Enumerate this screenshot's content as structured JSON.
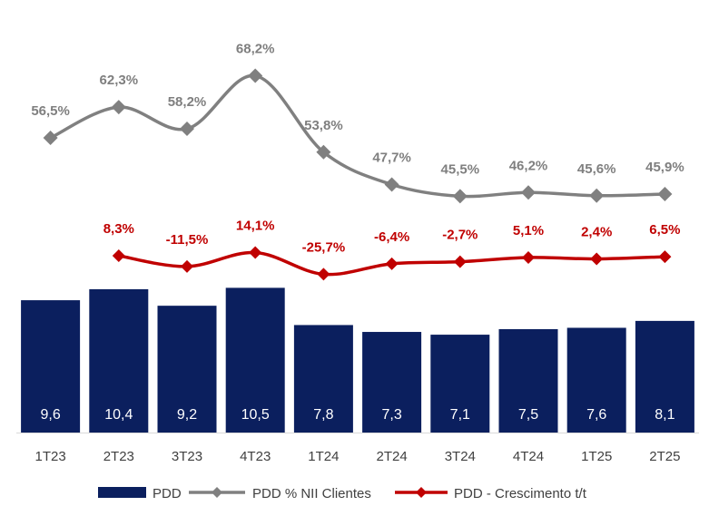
{
  "chart_data": {
    "type": "bar",
    "categories": [
      "1T23",
      "2T23",
      "3T23",
      "4T23",
      "1T24",
      "2T24",
      "3T24",
      "4T24",
      "1T25",
      "2T25"
    ],
    "series": [
      {
        "name": "PDD",
        "type": "bar",
        "values": [
          9.6,
          10.4,
          9.2,
          10.5,
          7.8,
          7.3,
          7.1,
          7.5,
          7.6,
          8.1
        ],
        "labels": [
          "9,6",
          "10,4",
          "9,2",
          "10,5",
          "7,8",
          "7,3",
          "7,1",
          "7,5",
          "7,6",
          "8,1"
        ],
        "color": "#0b1f5e"
      },
      {
        "name": "PDD % NII Clientes",
        "type": "line",
        "values": [
          56.5,
          62.3,
          58.2,
          68.2,
          53.8,
          47.7,
          45.5,
          46.2,
          45.6,
          45.9
        ],
        "labels": [
          "56,5%",
          "62,3%",
          "58,2%",
          "68,2%",
          "53,8%",
          "47,7%",
          "45,5%",
          "46,2%",
          "45,6%",
          "45,9%"
        ],
        "color": "#808080"
      },
      {
        "name": "PDD - Crescimento t/t",
        "type": "line",
        "values": [
          null,
          8.3,
          -11.5,
          14.1,
          -25.7,
          -6.4,
          -2.7,
          5.1,
          2.4,
          6.5
        ],
        "labels": [
          "",
          "8,3%",
          "-11,5%",
          "14,1%",
          "-25,7%",
          "-6,4%",
          "-2,7%",
          "5,1%",
          "2,4%",
          "6,5%"
        ],
        "color": "#c00000"
      }
    ],
    "legend_position": "bottom",
    "grid": false
  }
}
